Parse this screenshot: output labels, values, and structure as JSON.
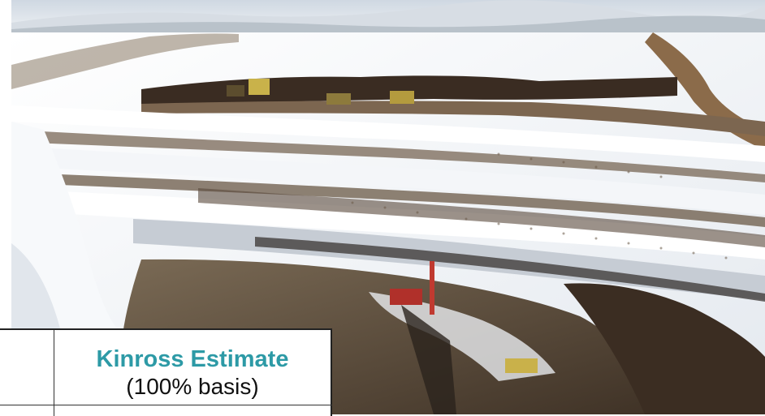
{
  "image": {
    "subject": "aerial-photo",
    "colors": {
      "snow": "#f2f4f7",
      "dirt": "#5a4632",
      "sky": "#dfe6ee",
      "accent": "#2d9aa6"
    }
  },
  "table": {
    "header_title": "Kinross Estimate",
    "header_subtitle": "(100% basis)"
  }
}
